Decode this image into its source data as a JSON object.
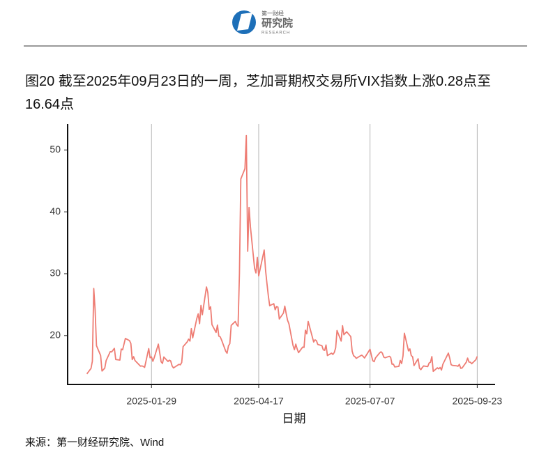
{
  "header": {
    "logo_name": "第一财经",
    "logo_sub": "研究院",
    "logo_en": "RESEARCH"
  },
  "chart_data": {
    "type": "line",
    "title": "图20  截至2025年09月23日的一周，芝加哥期权交易所VIX指数上涨0.28点至16.64点",
    "x_label": "日期",
    "x": [
      "2024-12-13",
      "2024-12-16",
      "2024-12-17",
      "2024-12-18",
      "2024-12-19",
      "2024-12-20",
      "2024-12-23",
      "2024-12-24",
      "2024-12-26",
      "2024-12-27",
      "2024-12-30",
      "2024-12-31",
      "2025-01-02",
      "2025-01-03",
      "2025-01-06",
      "2025-01-07",
      "2025-01-08",
      "2025-01-10",
      "2025-01-13",
      "2025-01-14",
      "2025-01-15",
      "2025-01-16",
      "2025-01-17",
      "2025-01-21",
      "2025-01-22",
      "2025-01-23",
      "2025-01-24",
      "2025-01-27",
      "2025-01-28",
      "2025-01-29",
      "2025-01-30",
      "2025-01-31",
      "2025-02-03",
      "2025-02-04",
      "2025-02-05",
      "2025-02-06",
      "2025-02-07",
      "2025-02-10",
      "2025-02-11",
      "2025-02-12",
      "2025-02-13",
      "2025-02-14",
      "2025-02-18",
      "2025-02-19",
      "2025-02-20",
      "2025-02-21",
      "2025-02-24",
      "2025-02-25",
      "2025-02-26",
      "2025-02-27",
      "2025-02-28",
      "2025-03-03",
      "2025-03-04",
      "2025-03-05",
      "2025-03-06",
      "2025-03-07",
      "2025-03-10",
      "2025-03-11",
      "2025-03-12",
      "2025-03-13",
      "2025-03-14",
      "2025-03-17",
      "2025-03-18",
      "2025-03-19",
      "2025-03-20",
      "2025-03-21",
      "2025-03-24",
      "2025-03-25",
      "2025-03-26",
      "2025-03-27",
      "2025-03-28",
      "2025-03-31",
      "2025-04-01",
      "2025-04-02",
      "2025-04-03",
      "2025-04-04",
      "2025-04-07",
      "2025-04-08",
      "2025-04-09",
      "2025-04-10",
      "2025-04-11",
      "2025-04-14",
      "2025-04-15",
      "2025-04-16",
      "2025-04-17",
      "2025-04-21",
      "2025-04-22",
      "2025-04-23",
      "2025-04-24",
      "2025-04-25",
      "2025-04-28",
      "2025-04-29",
      "2025-04-30",
      "2025-05-01",
      "2025-05-02",
      "2025-05-05",
      "2025-05-06",
      "2025-05-07",
      "2025-05-08",
      "2025-05-09",
      "2025-05-12",
      "2025-05-13",
      "2025-05-14",
      "2025-05-15",
      "2025-05-16",
      "2025-05-19",
      "2025-05-20",
      "2025-05-21",
      "2025-05-22",
      "2025-05-23",
      "2025-05-27",
      "2025-05-28",
      "2025-05-29",
      "2025-05-30",
      "2025-06-02",
      "2025-06-03",
      "2025-06-04",
      "2025-06-05",
      "2025-06-06",
      "2025-06-09",
      "2025-06-10",
      "2025-06-11",
      "2025-06-12",
      "2025-06-13",
      "2025-06-16",
      "2025-06-17",
      "2025-06-18",
      "2025-06-20",
      "2025-06-23",
      "2025-06-24",
      "2025-06-25",
      "2025-06-26",
      "2025-06-27",
      "2025-06-30",
      "2025-07-01",
      "2025-07-02",
      "2025-07-03",
      "2025-07-07",
      "2025-07-08",
      "2025-07-09",
      "2025-07-10",
      "2025-07-11",
      "2025-07-14",
      "2025-07-15",
      "2025-07-16",
      "2025-07-17",
      "2025-07-18",
      "2025-07-21",
      "2025-07-22",
      "2025-07-23",
      "2025-07-24",
      "2025-07-25",
      "2025-07-28",
      "2025-07-29",
      "2025-07-30",
      "2025-07-31",
      "2025-08-01",
      "2025-08-04",
      "2025-08-05",
      "2025-08-06",
      "2025-08-07",
      "2025-08-08",
      "2025-08-11",
      "2025-08-12",
      "2025-08-13",
      "2025-08-14",
      "2025-08-15",
      "2025-08-18",
      "2025-08-19",
      "2025-08-20",
      "2025-08-21",
      "2025-08-22",
      "2025-08-25",
      "2025-08-26",
      "2025-08-27",
      "2025-08-28",
      "2025-08-29",
      "2025-09-02",
      "2025-09-03",
      "2025-09-04",
      "2025-09-05",
      "2025-09-08",
      "2025-09-09",
      "2025-09-10",
      "2025-09-11",
      "2025-09-12",
      "2025-09-15",
      "2025-09-16",
      "2025-09-17",
      "2025-09-18",
      "2025-09-19",
      "2025-09-22",
      "2025-09-23"
    ],
    "series": [
      {
        "name": "VIX",
        "color": "#ee7d74",
        "values": [
          13.81,
          14.69,
          15.87,
          27.62,
          24.09,
          18.36,
          16.78,
          14.27,
          14.73,
          15.95,
          17.4,
          17.35,
          17.93,
          16.13,
          16.04,
          17.82,
          17.7,
          19.54,
          19.19,
          18.71,
          16.12,
          16.6,
          15.97,
          15.06,
          15.1,
          15.02,
          14.85,
          17.9,
          16.41,
          16.56,
          15.84,
          16.43,
          18.62,
          17.21,
          15.77,
          15.5,
          16.54,
          15.81,
          16.02,
          15.89,
          15.1,
          14.77,
          15.35,
          15.27,
          15.66,
          18.21,
          18.98,
          19.43,
          19.1,
          21.13,
          19.63,
          22.78,
          23.51,
          21.93,
          24.87,
          23.37,
          27.86,
          26.92,
          24.23,
          24.66,
          21.77,
          20.51,
          21.7,
          19.9,
          19.8,
          19.28,
          17.48,
          17.15,
          18.33,
          18.69,
          21.65,
          22.28,
          21.77,
          21.51,
          30.02,
          45.31,
          46.98,
          52.33,
          33.62,
          40.72,
          37.56,
          30.89,
          30.12,
          32.64,
          29.65,
          33.82,
          30.57,
          28.45,
          26.47,
          24.84,
          25.15,
          24.17,
          24.7,
          24.6,
          22.68,
          23.64,
          24.76,
          23.55,
          22.48,
          21.9,
          18.39,
          17.72,
          18.62,
          17.83,
          17.24,
          18.14,
          18.09,
          20.87,
          20.28,
          22.29,
          18.96,
          19.31,
          19.18,
          18.57,
          18.36,
          17.69,
          17.61,
          18.48,
          16.77,
          17.16,
          16.95,
          17.26,
          18.02,
          20.82,
          19.11,
          21.6,
          20.14,
          20.62,
          19.83,
          17.48,
          16.76,
          16.59,
          16.32,
          16.73,
          16.83,
          16.64,
          16.38,
          17.79,
          16.81,
          15.94,
          15.78,
          16.4,
          17.2,
          17.38,
          17.16,
          16.52,
          16.41,
          16.65,
          16.5,
          15.37,
          15.39,
          14.93,
          15.03,
          15.98,
          15.48,
          16.72,
          20.38,
          17.52,
          17.85,
          16.77,
          16.57,
          15.15,
          16.25,
          14.73,
          14.49,
          14.83,
          15.09,
          14.99,
          15.57,
          15.69,
          16.6,
          14.22,
          14.79,
          14.62,
          14.85,
          14.43,
          15.36,
          17.17,
          16.35,
          15.3,
          15.18,
          15.11,
          15.04,
          15.35,
          14.71,
          14.76,
          15.69,
          16.36,
          15.72,
          15.7,
          15.45,
          16.1,
          16.64
        ]
      }
    ],
    "xlim": [
      "2024-11-29",
      "2025-10-06"
    ],
    "xticks": [
      "2025-01-29",
      "2025-04-17",
      "2025-07-07",
      "2025-09-23"
    ],
    "ylim": [
      12.1,
      54.2
    ],
    "yticks": [
      20,
      30,
      40,
      50
    ],
    "grid": "x",
    "source": "来源：第一财经研究院、Wind"
  }
}
